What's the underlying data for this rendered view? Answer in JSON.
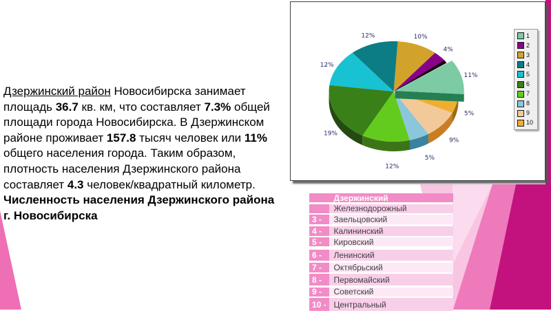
{
  "text_block": {
    "segments": [
      {
        "text": "Дзержинский район",
        "underline": true
      },
      {
        "text": " Новосибирска занимает площадь "
      },
      {
        "text": "36.7",
        "bold": true
      },
      {
        "text": " кв. км, что составляет "
      },
      {
        "text": "7.3%",
        "bold": true
      },
      {
        "text": " общей площади города Новосибирска. В Дзержинском районе проживает "
      },
      {
        "text": "157.8",
        "bold": true
      },
      {
        "text": " тысяч человек или "
      },
      {
        "text": "11%",
        "bold": true
      },
      {
        "text": " общего населения города. Таким образом, плотность населения Дзержинского района составляет "
      },
      {
        "text": "4.3",
        "bold": true
      },
      {
        "text": " человек/квадратный километр. "
      },
      {
        "text": "Численность населения Дзержинского района г. Новосибирска",
        "bold": true
      }
    ]
  },
  "chart_data": {
    "type": "pie",
    "style": "3d-exploded",
    "title": "",
    "legend_position": "right",
    "legend_labels": [
      "1",
      "2",
      "3",
      "4",
      "5",
      "6",
      "7",
      "8",
      "9",
      "10"
    ],
    "values": [
      11,
      4,
      10,
      12,
      12,
      19,
      12,
      5,
      9,
      5
    ],
    "percent_labels": [
      "11%",
      "4%",
      "10%",
      "12%",
      "12%",
      "19%",
      "12%",
      "5%",
      "9%",
      "5%"
    ],
    "colors": [
      "#7CCBA4",
      "#8A0189",
      "#D2A32B",
      "#0C7D84",
      "#18C2D2",
      "#3A8019",
      "#63CB1D",
      "#8CC6DB",
      "#F2C998",
      "#F0AE31"
    ],
    "exploded_index": 0,
    "label_color": "#2B2B66"
  },
  "table": {
    "rows": [
      {
        "number": "",
        "name": "Дзержинский",
        "header": true
      },
      {
        "number": "",
        "name": "Железнодорожный"
      },
      {
        "number": "3 -",
        "name": "Заельцовский"
      },
      {
        "number": "4 -",
        "name": "Калининский"
      },
      {
        "number": "5 -",
        "name": "Кировский"
      },
      {
        "number": "6 -",
        "name": "Ленинский",
        "gap_before": true
      },
      {
        "number": "7 -",
        "name": "Октябрьский"
      },
      {
        "number": "8 -",
        "name": "Первомайский"
      },
      {
        "number": "9 -",
        "name": "Советский"
      },
      {
        "number": "10 -",
        "name": "Центральный"
      }
    ],
    "header_fill": "#F18CC6",
    "number_fill": "#F18CC6",
    "band_a": "#F8CFE9",
    "band_b": "#FCE9F5",
    "header_text_color": "#FFFFFF",
    "body_text_color": "#3F3F3F"
  },
  "background": {
    "left_wedge_color": "#EE6FB4",
    "right_stripe_color": "#C3127E",
    "field_light": "#F8C6E3",
    "field_medium": "#EE7ABB",
    "field_dark": "#C3127E"
  }
}
